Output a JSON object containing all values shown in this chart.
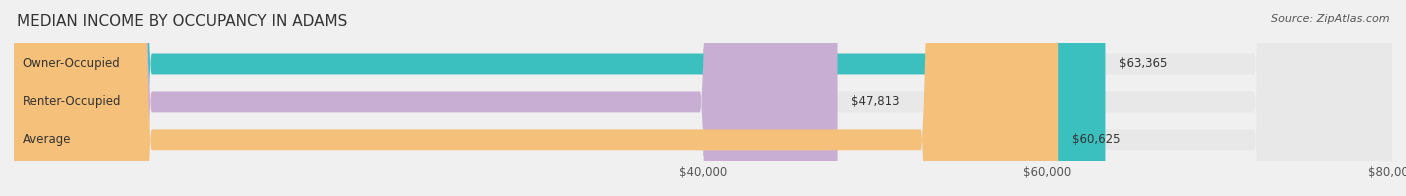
{
  "title": "MEDIAN INCOME BY OCCUPANCY IN ADAMS",
  "source": "Source: ZipAtlas.com",
  "categories": [
    "Owner-Occupied",
    "Renter-Occupied",
    "Average"
  ],
  "values": [
    63365,
    47813,
    60625
  ],
  "bar_colors": [
    "#3bbfbf",
    "#c9aed4",
    "#f5c07a"
  ],
  "bar_labels": [
    "$63,365",
    "$47,813",
    "$60,625"
  ],
  "xlim": [
    0,
    80000
  ],
  "xticks": [
    40000,
    60000,
    80000
  ],
  "xtick_labels": [
    "$40,000",
    "$60,000",
    "$80,000"
  ],
  "background_color": "#f0f0f0",
  "bar_background_color": "#e8e8e8",
  "title_fontsize": 11,
  "source_fontsize": 8,
  "label_fontsize": 8.5,
  "tick_fontsize": 8.5
}
